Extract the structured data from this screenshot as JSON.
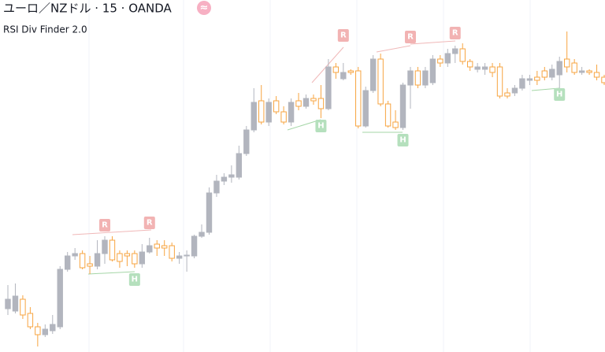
{
  "chart_data": {
    "type": "candlestick",
    "title": "ユーロ／NZドル · 15 · OANDA",
    "badge": "≈",
    "indicator": "RSI Div Finder 2.0",
    "up_color": "#b2b5be",
    "down_color": "#f7a440",
    "ylim": [
      0,
      447
    ],
    "ohlc": [
      [
        55,
        85,
        47,
        67
      ],
      [
        52,
        87,
        49,
        71
      ],
      [
        67,
        72,
        42,
        47
      ],
      [
        49,
        57,
        29,
        32
      ],
      [
        32,
        37,
        7,
        22
      ],
      [
        22,
        35,
        19,
        29
      ],
      [
        27,
        47,
        23,
        35
      ],
      [
        32,
        109,
        29,
        105
      ],
      [
        105,
        127,
        102,
        122
      ],
      [
        122,
        132,
        117,
        125
      ],
      [
        125,
        129,
        105,
        107
      ],
      [
        112,
        122,
        99,
        109
      ],
      [
        109,
        142,
        105,
        125
      ],
      [
        125,
        147,
        112,
        142
      ],
      [
        142,
        147,
        115,
        117
      ],
      [
        125,
        129,
        107,
        115
      ],
      [
        125,
        129,
        109,
        122
      ],
      [
        125,
        129,
        107,
        112
      ],
      [
        112,
        137,
        107,
        127
      ],
      [
        127,
        145,
        125,
        135
      ],
      [
        137,
        142,
        122,
        132
      ],
      [
        135,
        142,
        122,
        132
      ],
      [
        135,
        139,
        115,
        119
      ],
      [
        119,
        127,
        112,
        122
      ],
      [
        122,
        129,
        102,
        123
      ],
      [
        122,
        149,
        119,
        147
      ],
      [
        147,
        162,
        145,
        152
      ],
      [
        152,
        209,
        149,
        202
      ],
      [
        202,
        225,
        197,
        217
      ],
      [
        217,
        227,
        212,
        222
      ],
      [
        222,
        237,
        215,
        225
      ],
      [
        222,
        262,
        219,
        252
      ],
      [
        252,
        287,
        249,
        282
      ],
      [
        282,
        335,
        279,
        317
      ],
      [
        319,
        339,
        289,
        292
      ],
      [
        292,
        322,
        287,
        317
      ],
      [
        319,
        325,
        302,
        305
      ],
      [
        305,
        312,
        289,
        292
      ],
      [
        292,
        322,
        287,
        317
      ],
      [
        319,
        329,
        307,
        312
      ],
      [
        312,
        327,
        309,
        322
      ],
      [
        322,
        327,
        314,
        319
      ],
      [
        322,
        339,
        297,
        309
      ],
      [
        309,
        372,
        307,
        362
      ],
      [
        362,
        367,
        347,
        355
      ],
      [
        347,
        367,
        345,
        355
      ],
      [
        357,
        359,
        352,
        355
      ],
      [
        357,
        362,
        284,
        287
      ],
      [
        287,
        337,
        285,
        332
      ],
      [
        332,
        377,
        329,
        372
      ],
      [
        372,
        379,
        312,
        315
      ],
      [
        315,
        319,
        285,
        287
      ],
      [
        292,
        307,
        282,
        285
      ],
      [
        285,
        342,
        282,
        339
      ],
      [
        339,
        362,
        309,
        357
      ],
      [
        357,
        362,
        335,
        339
      ],
      [
        339,
        362,
        335,
        357
      ],
      [
        342,
        377,
        339,
        372
      ],
      [
        372,
        377,
        362,
        367
      ],
      [
        367,
        385,
        362,
        379
      ],
      [
        379,
        389,
        367,
        385
      ],
      [
        385,
        392,
        365,
        369
      ],
      [
        369,
        372,
        357,
        362
      ],
      [
        359,
        367,
        355,
        362
      ],
      [
        359,
        367,
        352,
        362
      ],
      [
        362,
        367,
        349,
        355
      ],
      [
        362,
        367,
        322,
        325
      ],
      [
        329,
        335,
        322,
        325
      ],
      [
        329,
        339,
        325,
        335
      ],
      [
        335,
        352,
        332,
        347
      ],
      [
        345,
        352,
        339,
        347
      ],
      [
        349,
        357,
        339,
        345
      ],
      [
        357,
        362,
        345,
        349
      ],
      [
        349,
        365,
        345,
        359
      ],
      [
        352,
        375,
        335,
        369
      ],
      [
        372,
        407,
        355,
        362
      ],
      [
        367,
        372,
        352,
        355
      ],
      [
        355,
        362,
        352,
        357
      ],
      [
        357,
        359,
        352,
        355
      ],
      [
        355,
        365,
        345,
        349
      ],
      [
        349,
        352,
        339,
        342
      ]
    ],
    "annotations": [
      {
        "text": "R",
        "index": 13,
        "value": 161,
        "color": "#f2b3b3"
      },
      {
        "text": "R",
        "index": 19,
        "value": 164,
        "color": "#f2b3b3"
      },
      {
        "text": "H",
        "index": 17,
        "value": 92,
        "color": "#b5e0bd"
      },
      {
        "text": "H",
        "index": 42,
        "value": 287,
        "color": "#b5e0bd"
      },
      {
        "text": "R",
        "index": 45,
        "value": 402,
        "color": "#f2b3b3"
      },
      {
        "text": "H",
        "index": 53,
        "value": 269,
        "color": "#b5e0bd"
      },
      {
        "text": "R",
        "index": 54,
        "value": 400,
        "color": "#f2b3b3"
      },
      {
        "text": "R",
        "index": 60,
        "value": 405,
        "color": "#f2b3b3"
      },
      {
        "text": "H",
        "index": 74,
        "value": 327,
        "color": "#b5e0bd"
      }
    ]
  }
}
